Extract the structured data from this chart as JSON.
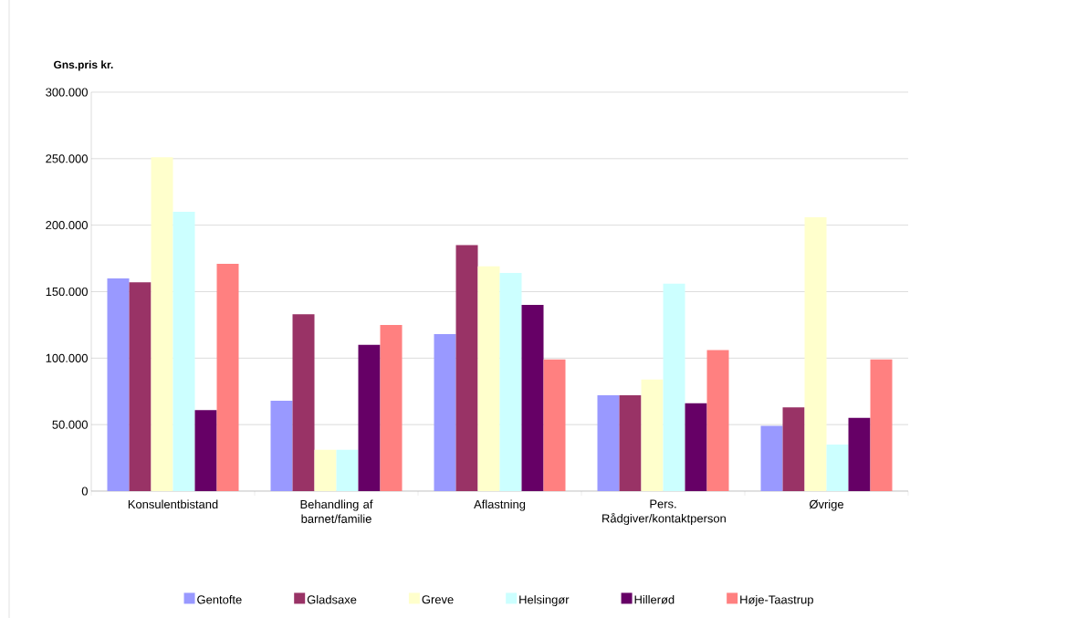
{
  "chart_data": {
    "type": "bar",
    "ylabel": "Gns.pris kr.",
    "categories": [
      "Konsulentbistand",
      "Behandling af barnet/familie",
      "Aflastning",
      "Pers. Rådgiver/kontaktperson",
      "Øvrige"
    ],
    "series": [
      {
        "name": "Gentofte",
        "color": "#9999ff",
        "values": [
          160000,
          68000,
          118000,
          72000,
          49000
        ]
      },
      {
        "name": "Gladsaxe",
        "color": "#993366",
        "values": [
          157000,
          133000,
          185000,
          72000,
          63000
        ]
      },
      {
        "name": "Greve",
        "color": "#ffffcc",
        "values": [
          251000,
          31000,
          169000,
          84000,
          206000
        ]
      },
      {
        "name": "Helsingør",
        "color": "#ccffff",
        "values": [
          210000,
          31000,
          164000,
          156000,
          35000
        ]
      },
      {
        "name": "Hillerød",
        "color": "#660066",
        "values": [
          61000,
          110000,
          140000,
          66000,
          55000
        ]
      },
      {
        "name": "Høje-Taastrup",
        "color": "#ff8080",
        "values": [
          171000,
          125000,
          99000,
          106000,
          99000
        ]
      }
    ],
    "ylim": [
      0,
      300000
    ],
    "yticks": [
      {
        "value": 0,
        "label": "0"
      },
      {
        "value": 50000,
        "label": "50.000"
      },
      {
        "value": 100000,
        "label": "100.000"
      },
      {
        "value": 150000,
        "label": "150.000"
      },
      {
        "value": 200000,
        "label": "200.000"
      },
      {
        "value": 250000,
        "label": "250.000"
      },
      {
        "value": 300000,
        "label": "300.000"
      }
    ],
    "grid": "y",
    "legend": "bottom"
  }
}
